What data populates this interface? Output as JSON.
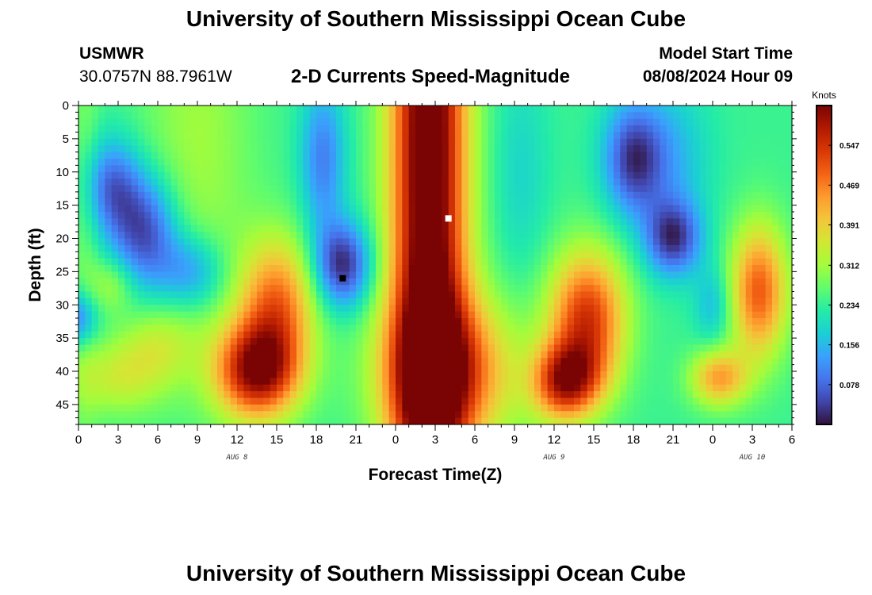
{
  "header": {
    "title": "University of Southern Mississippi Ocean Cube",
    "station_id": "USMWR",
    "coords": "30.0757N  88.7961W",
    "subtitle": "2-D Currents Speed-Magnitude",
    "start_label": "Model Start Time",
    "start_value": "08/08/2024 Hour 09"
  },
  "footer": {
    "title": "University of Southern Mississippi Ocean Cube"
  },
  "chart_data": {
    "type": "heatmap",
    "title": "2-D Currents Speed-Magnitude",
    "xlabel": "Forecast Time(Z)",
    "ylabel": "Depth (ft)",
    "x_range_hours": [
      0,
      54
    ],
    "x_ticks": [
      "0",
      "3",
      "6",
      "9",
      "12",
      "15",
      "18",
      "21",
      "0",
      "3",
      "6",
      "9",
      "12",
      "15",
      "18",
      "21",
      "0",
      "3",
      "6"
    ],
    "date_labels": [
      {
        "label": "AUG 8",
        "hour": 12
      },
      {
        "label": "AUG 9",
        "hour": 36
      },
      {
        "label": "AUG 10",
        "hour": 51
      }
    ],
    "y_range_ft": [
      0,
      48
    ],
    "y_ticks": [
      "0",
      "5",
      "10",
      "15",
      "20",
      "25",
      "30",
      "35",
      "40",
      "45"
    ],
    "colorbar": {
      "title": "Knots",
      "min": 0.0,
      "max": 0.625,
      "ticks": [
        "0.547",
        "0.469",
        "0.391",
        "0.312",
        "0.234",
        "0.156",
        "0.078"
      ],
      "colormap": [
        "#30123b",
        "#4145ab",
        "#4675ed",
        "#39a2fc",
        "#1bcfd4",
        "#24eca6",
        "#61fc6c",
        "#a4fc3b",
        "#d1e834",
        "#f3c63a",
        "#fe9b2d",
        "#f36315",
        "#d93806",
        "#b11901",
        "#7a0403"
      ]
    },
    "markers": [
      {
        "name": "low-marker",
        "hour": 20,
        "depth_ft": 26,
        "color": "#000000"
      },
      {
        "name": "high-marker",
        "hour": 28,
        "depth_ft": 17,
        "color": "#ffffff"
      }
    ],
    "field": {
      "baseline": 0.24,
      "components": [
        {
          "hour": 26.5,
          "depth": 8,
          "sh": 2.0,
          "sd": 60,
          "amp": 0.45
        },
        {
          "hour": 28,
          "depth": 40,
          "sh": 3.5,
          "sd": 8,
          "amp": 0.26
        },
        {
          "hour": 13.5,
          "depth": 40,
          "sh": 2.2,
          "sd": 5,
          "amp": 0.36
        },
        {
          "hour": 15,
          "depth": 30,
          "sh": 2.0,
          "sd": 7,
          "amp": 0.24
        },
        {
          "hour": 36.5,
          "depth": 42,
          "sh": 1.6,
          "sd": 4,
          "amp": 0.18
        },
        {
          "hour": 38.5,
          "depth": 32,
          "sh": 2.0,
          "sd": 7,
          "amp": 0.3
        },
        {
          "hour": 37.5,
          "depth": 41,
          "sh": 1.8,
          "sd": 4,
          "amp": 0.16
        },
        {
          "hour": 51.5,
          "depth": 28,
          "sh": 1.5,
          "sd": 7,
          "amp": 0.26
        },
        {
          "hour": 48.5,
          "depth": 41,
          "sh": 1.5,
          "sd": 3,
          "amp": 0.2
        },
        {
          "hour": 3,
          "depth": 41,
          "sh": 2.5,
          "sd": 4,
          "amp": 0.1
        },
        {
          "hour": 6,
          "depth": 36,
          "sh": 2.0,
          "sd": 4,
          "amp": 0.08
        },
        {
          "hour": 2.5,
          "depth": 27,
          "sh": 1.2,
          "sd": 3,
          "amp": 0.08
        },
        {
          "hour": 9,
          "depth": 6,
          "sh": 3.0,
          "sd": 22,
          "amp": 0.07
        },
        {
          "hour": 0.5,
          "depth": 10,
          "sh": 0.8,
          "sd": 35,
          "amp": 0.04
        },
        {
          "hour": 5,
          "depth": 19,
          "sh": 1.8,
          "sd": 6,
          "amp": -0.2
        },
        {
          "hour": 2.5,
          "depth": 12,
          "sh": 1.5,
          "sd": 5,
          "amp": -0.15
        },
        {
          "hour": 8.5,
          "depth": 25,
          "sh": 1.8,
          "sd": 4,
          "amp": -0.13
        },
        {
          "hour": 0,
          "depth": 32,
          "sh": 1.0,
          "sd": 3,
          "amp": -0.15
        },
        {
          "hour": 20,
          "depth": 24,
          "sh": 1.5,
          "sd": 4.5,
          "amp": -0.22
        },
        {
          "hour": 18.5,
          "depth": 8,
          "sh": 1.2,
          "sd": 8,
          "amp": -0.14
        },
        {
          "hour": 42,
          "depth": 8,
          "sh": 1.6,
          "sd": 6,
          "amp": -0.2
        },
        {
          "hour": 45,
          "depth": 20,
          "sh": 1.5,
          "sd": 4,
          "amp": -0.2
        },
        {
          "hour": 45,
          "depth": 8,
          "sh": 2.0,
          "sd": 8,
          "amp": -0.08
        },
        {
          "hour": 33.5,
          "depth": 10,
          "sh": 1.5,
          "sd": 12,
          "amp": -0.05
        },
        {
          "hour": 48,
          "depth": 30,
          "sh": 1.0,
          "sd": 4,
          "amp": -0.08
        }
      ]
    }
  }
}
